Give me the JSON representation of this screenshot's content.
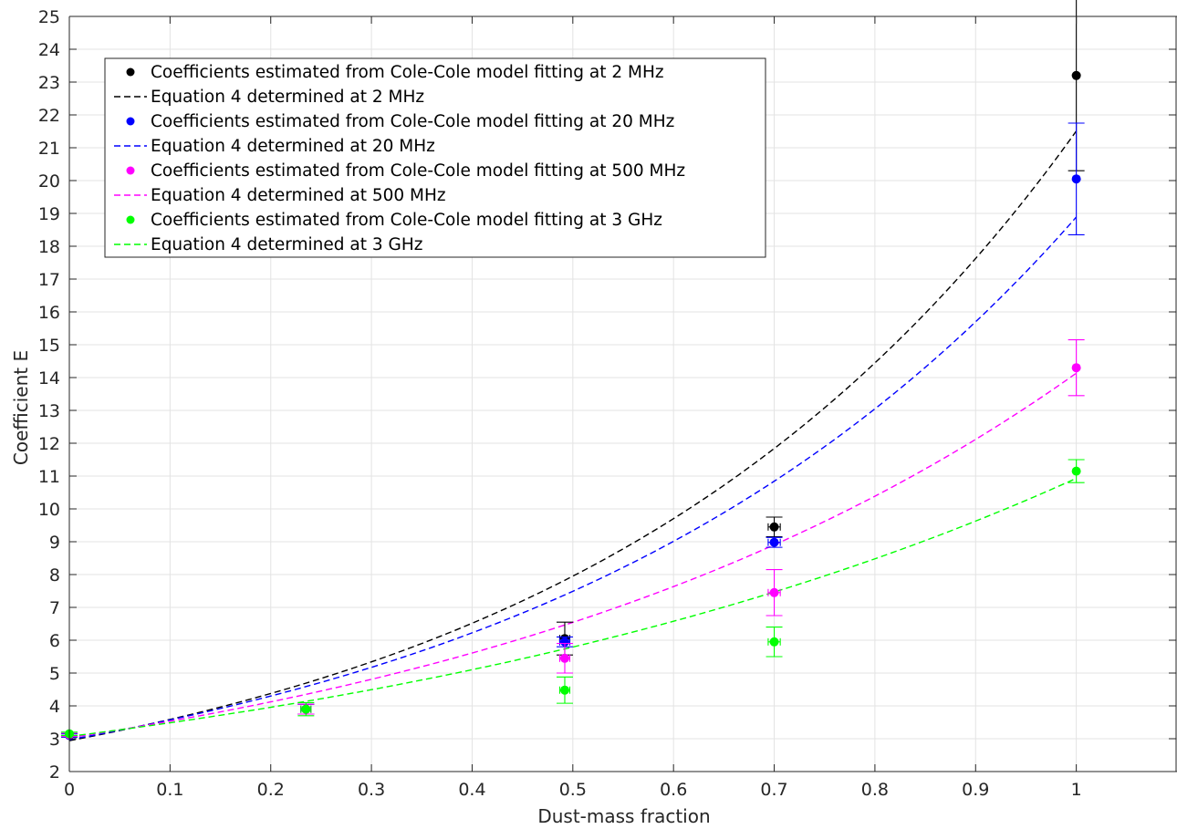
{
  "chart_data": {
    "type": "scatter",
    "title": "",
    "xlabel": "Dust-mass fraction",
    "ylabel": "Coefficient E",
    "xlim": [
      0,
      1.1
    ],
    "ylim": [
      2,
      25
    ],
    "xticks": [
      "0",
      "0.1",
      "0.2",
      "0.3",
      "0.4",
      "0.5",
      "0.6",
      "0.7",
      "0.8",
      "0.9",
      "1"
    ],
    "yticks": [
      "2",
      "3",
      "4",
      "5",
      "6",
      "7",
      "8",
      "9",
      "10",
      "11",
      "12",
      "13",
      "14",
      "15",
      "16",
      "17",
      "18",
      "19",
      "20",
      "21",
      "22",
      "23",
      "24",
      "25"
    ],
    "grid": true,
    "legend_position": "top-left",
    "series": [
      {
        "name": "Coefficients estimated from Cole-Cole model fitting at 2 MHz",
        "kind": "points",
        "color": "#000000",
        "points": [
          {
            "x": 0,
            "y": 3.1,
            "err": 0.05,
            "xerr": 0
          },
          {
            "x": 0.235,
            "y": 3.9,
            "err": 0.15,
            "xerr": 0.005
          },
          {
            "x": 0.492,
            "y": 6.05,
            "err": 0.5,
            "xerr": 0.005
          },
          {
            "x": 0.7,
            "y": 9.45,
            "err": 0.3,
            "xerr": 0.006
          },
          {
            "x": 1,
            "y": 23.2,
            "err": 2.9,
            "xerr": 0
          }
        ]
      },
      {
        "name": "Equation 4 determined at 2 MHz",
        "kind": "curve",
        "color": "#000000",
        "curve": {
          "a": 2.94,
          "b": 1.99
        }
      },
      {
        "name": "Coefficients estimated from Cole-Cole model fitting at 20 MHz",
        "kind": "points",
        "color": "#0000ff",
        "points": [
          {
            "x": 0,
            "y": 3.1,
            "err": 0.05,
            "xerr": 0
          },
          {
            "x": 0.235,
            "y": 3.9,
            "err": 0.15,
            "xerr": 0.005
          },
          {
            "x": 0.492,
            "y": 5.95,
            "err": 0.15,
            "xerr": 0.005
          },
          {
            "x": 0.7,
            "y": 8.98,
            "err": 0.15,
            "xerr": 0.006
          },
          {
            "x": 1,
            "y": 20.05,
            "err": 1.7,
            "xerr": 0
          }
        ]
      },
      {
        "name": "Equation 4 determined at 20 MHz",
        "kind": "curve",
        "color": "#0000ff",
        "curve": {
          "a": 2.97,
          "b": 1.85
        }
      },
      {
        "name": "Coefficients estimated from Cole-Cole model fitting at 500 MHz",
        "kind": "points",
        "color": "#ff00ff",
        "points": [
          {
            "x": 0,
            "y": 3.12,
            "err": 0.05,
            "xerr": 0
          },
          {
            "x": 0.235,
            "y": 3.9,
            "err": 0.15,
            "xerr": 0.005
          },
          {
            "x": 0.492,
            "y": 5.45,
            "err": 0.45,
            "xerr": 0.005
          },
          {
            "x": 0.7,
            "y": 7.45,
            "err": 0.7,
            "xerr": 0.006
          },
          {
            "x": 1,
            "y": 14.3,
            "err": 0.85,
            "xerr": 0
          }
        ]
      },
      {
        "name": "Equation 4 determined at 500 MHz",
        "kind": "curve",
        "color": "#ff00ff",
        "curve": {
          "a": 3.03,
          "b": 1.54
        }
      },
      {
        "name": "Coefficients estimated from Cole-Cole model fitting at 3 GHz",
        "kind": "points",
        "color": "#00ff00",
        "points": [
          {
            "x": 0,
            "y": 3.15,
            "err": 0.05,
            "xerr": 0
          },
          {
            "x": 0.235,
            "y": 3.9,
            "err": 0.2,
            "xerr": 0.005
          },
          {
            "x": 0.492,
            "y": 4.48,
            "err": 0.4,
            "xerr": 0.005
          },
          {
            "x": 0.7,
            "y": 5.95,
            "err": 0.45,
            "xerr": 0.006
          },
          {
            "x": 1,
            "y": 11.15,
            "err": 0.35,
            "xerr": 0
          }
        ]
      },
      {
        "name": "Equation 4 determined at 3 GHz",
        "kind": "curve",
        "color": "#00ff00",
        "curve": {
          "a": 3.07,
          "b": 1.27
        }
      }
    ]
  }
}
